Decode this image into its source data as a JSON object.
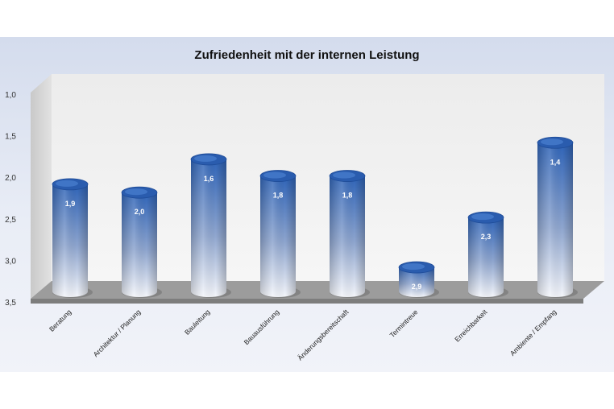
{
  "chart_data": {
    "type": "bar",
    "title": "Zufriedenheit mit der internen Leistung",
    "xlabel": "",
    "ylabel": "",
    "categories": [
      "Beratung",
      "Architektur / Planung",
      "Bauleitung",
      "Bauausführung",
      "Änderungsbereitschaft",
      "Termintreue",
      "Erreichbarkeit",
      "Ambiente / Empfang"
    ],
    "values": [
      1.9,
      2.0,
      1.6,
      1.8,
      1.8,
      2.9,
      2.3,
      1.4
    ],
    "value_labels": [
      "1,9",
      "2,0",
      "1,6",
      "1,8",
      "1,8",
      "2,9",
      "2,3",
      "1,4"
    ],
    "ylim": [
      1.0,
      3.5
    ],
    "y_inverted": true,
    "yticks": [
      1.0,
      1.5,
      2.0,
      2.5,
      3.0,
      3.5
    ],
    "ytick_labels": [
      "1,0",
      "1,5",
      "2,0",
      "2,5",
      "3,0",
      "3,5"
    ],
    "grid": false,
    "legend": "none",
    "colors": {
      "bar_top": "#2f64b8",
      "bar_bottom": "#f4f6fb",
      "wall": "#eeeeee",
      "floor": "#9a9a9a"
    }
  }
}
